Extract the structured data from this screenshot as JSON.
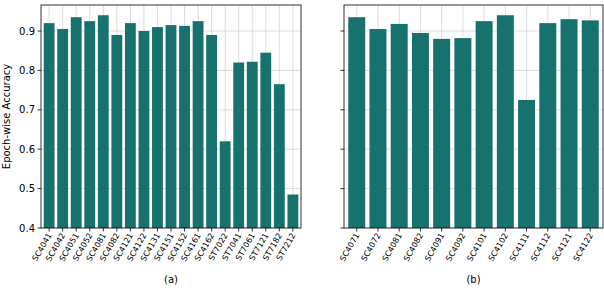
{
  "chart_data": [
    {
      "type": "bar",
      "ylabel": "Epoch-wise Accuracy",
      "xlabel": "(a)",
      "categories": [
        "SC4041",
        "SC4042",
        "SC4051",
        "SC4052",
        "SC4081",
        "SC4082",
        "SC4121",
        "SC4122",
        "SC4131",
        "SC4151",
        "SC4152",
        "SC4161",
        "SC4162",
        "ST7022",
        "ST7041",
        "ST7061",
        "ST7121",
        "ST7182",
        "ST7212"
      ],
      "values": [
        0.92,
        0.905,
        0.935,
        0.925,
        0.94,
        0.89,
        0.92,
        0.9,
        0.91,
        0.915,
        0.913,
        0.925,
        0.89,
        0.62,
        0.82,
        0.822,
        0.845,
        0.765,
        0.485
      ],
      "color": "#17726d",
      "ylim": [
        0.4,
        0.966
      ],
      "yticks": [
        0.4,
        0.5,
        0.6,
        0.7,
        0.8,
        0.9
      ],
      "grid": true
    },
    {
      "type": "bar",
      "xlabel": "(b)",
      "categories": [
        "SC4071",
        "SC4072",
        "SC4081",
        "SC4082",
        "SC4091",
        "SC4092",
        "SC4101",
        "SC4102",
        "SC4111",
        "SC4112",
        "SC4121",
        "SC4122"
      ],
      "values": [
        0.935,
        0.905,
        0.918,
        0.895,
        0.88,
        0.882,
        0.925,
        0.94,
        0.725,
        0.92,
        0.93,
        0.927
      ],
      "color": "#17726d",
      "ylim": [
        0.4,
        0.966
      ],
      "yticks": [
        0.4,
        0.5,
        0.6,
        0.7,
        0.8,
        0.9
      ],
      "grid": true,
      "tick_labels": "x"
    }
  ]
}
